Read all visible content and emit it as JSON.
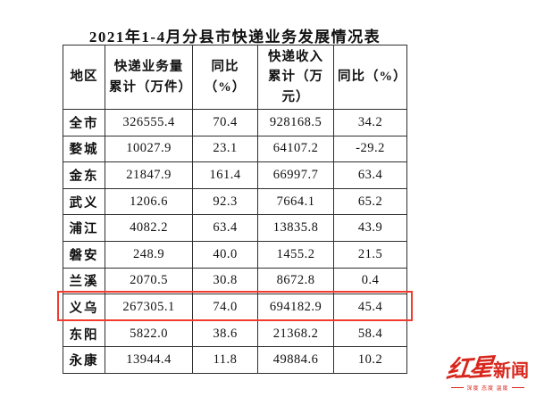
{
  "title": "2021年1-4月分县市快递业务发展情况表",
  "table": {
    "columns": [
      "地区",
      "快递业务量累计（万件）",
      "同比（%）",
      "快递收入累计（万元）",
      "同比（%）"
    ],
    "rows": [
      {
        "region": "全市",
        "volume": "326555.4",
        "volume_yoy": "70.4",
        "revenue": "928168.5",
        "revenue_yoy": "34.2"
      },
      {
        "region": "婺城",
        "volume": "10027.9",
        "volume_yoy": "23.1",
        "revenue": "64107.2",
        "revenue_yoy": "-29.2"
      },
      {
        "region": "金东",
        "volume": "21847.9",
        "volume_yoy": "161.4",
        "revenue": "66997.7",
        "revenue_yoy": "63.4"
      },
      {
        "region": "武义",
        "volume": "1206.6",
        "volume_yoy": "92.3",
        "revenue": "7664.1",
        "revenue_yoy": "65.2"
      },
      {
        "region": "浦江",
        "volume": "4082.2",
        "volume_yoy": "63.4",
        "revenue": "13835.8",
        "revenue_yoy": "43.9"
      },
      {
        "region": "磐安",
        "volume": "248.9",
        "volume_yoy": "40.0",
        "revenue": "1455.2",
        "revenue_yoy": "21.5"
      },
      {
        "region": "兰溪",
        "volume": "2070.5",
        "volume_yoy": "30.8",
        "revenue": "8672.8",
        "revenue_yoy": "0.4"
      },
      {
        "region": "义乌",
        "volume": "267305.1",
        "volume_yoy": "74.0",
        "revenue": "694182.9",
        "revenue_yoy": "45.4",
        "highlighted": true
      },
      {
        "region": "东阳",
        "volume": "5822.0",
        "volume_yoy": "38.6",
        "revenue": "21368.2",
        "revenue_yoy": "58.4"
      },
      {
        "region": "永康",
        "volume": "13944.4",
        "volume_yoy": "11.8",
        "revenue": "49884.6",
        "revenue_yoy": "10.2"
      }
    ],
    "highlight": {
      "region": "义乌",
      "color": "#f23b2e"
    }
  },
  "watermark": {
    "brand_script": "红星",
    "brand_bold": "新闻",
    "tagline": "深度 态度 温度",
    "color": "#d8261c"
  }
}
